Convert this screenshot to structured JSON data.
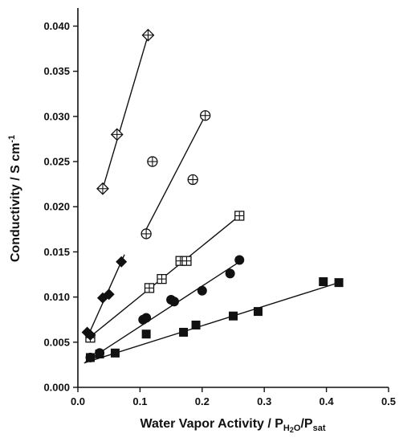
{
  "chart_data": {
    "type": "scatter",
    "title": "",
    "xlabel": {
      "text": "Water Vapor Activity / P",
      "sub1": "H",
      "sub2": "2",
      "sub3": "O",
      "mid": "/P",
      "sub4": "sat"
    },
    "ylabel": {
      "text": "Conductivity / S cm",
      "sup": "-1"
    },
    "xlim": [
      0.0,
      0.5
    ],
    "ylim": [
      0.0,
      0.042
    ],
    "xticks": [
      {
        "value": 0.0,
        "label": "0.0"
      },
      {
        "value": 0.1,
        "label": "0.1"
      },
      {
        "value": 0.2,
        "label": "0.2"
      },
      {
        "value": 0.3,
        "label": "0.3"
      },
      {
        "value": 0.4,
        "label": "0.4"
      },
      {
        "value": 0.5,
        "label": "0.5"
      }
    ],
    "yticks": [
      {
        "value": 0.0,
        "label": "0.000"
      },
      {
        "value": 0.005,
        "label": "0.005"
      },
      {
        "value": 0.01,
        "label": "0.010"
      },
      {
        "value": 0.015,
        "label": "0.015"
      },
      {
        "value": 0.02,
        "label": "0.020"
      },
      {
        "value": 0.025,
        "label": "0.025"
      },
      {
        "value": 0.03,
        "label": "0.030"
      },
      {
        "value": 0.035,
        "label": "0.035"
      },
      {
        "value": 0.04,
        "label": "0.040"
      }
    ],
    "grid": false,
    "legend": "none",
    "series": [
      {
        "marker": "filled-square",
        "points": [
          [
            0.02,
            0.0033
          ],
          [
            0.035,
            0.0037
          ],
          [
            0.06,
            0.0038
          ],
          [
            0.11,
            0.0059
          ],
          [
            0.17,
            0.0061
          ],
          [
            0.19,
            0.0069
          ],
          [
            0.25,
            0.0079
          ],
          [
            0.29,
            0.0084
          ],
          [
            0.395,
            0.0117
          ],
          [
            0.42,
            0.0116
          ]
        ],
        "fit": [
          [
            0.01,
            0.0027
          ],
          [
            0.42,
            0.0116
          ]
        ]
      },
      {
        "marker": "filled-circle",
        "points": [
          [
            0.02,
            0.0033
          ],
          [
            0.035,
            0.0038
          ],
          [
            0.105,
            0.0075
          ],
          [
            0.11,
            0.0077
          ],
          [
            0.15,
            0.0097
          ],
          [
            0.155,
            0.0095
          ],
          [
            0.2,
            0.0107
          ],
          [
            0.245,
            0.0126
          ],
          [
            0.26,
            0.0141
          ]
        ],
        "fit": [
          [
            0.012,
            0.0028
          ],
          [
            0.26,
            0.0139
          ]
        ]
      },
      {
        "marker": "square-plus",
        "points": [
          [
            0.02,
            0.0055
          ],
          [
            0.115,
            0.011
          ],
          [
            0.135,
            0.012
          ],
          [
            0.165,
            0.014
          ],
          [
            0.175,
            0.014
          ],
          [
            0.26,
            0.019
          ]
        ],
        "fit": [
          [
            0.018,
            0.0055
          ],
          [
            0.26,
            0.019
          ]
        ]
      },
      {
        "marker": "filled-diamond",
        "points": [
          [
            0.015,
            0.0061
          ],
          [
            0.02,
            0.0058
          ],
          [
            0.04,
            0.0099
          ],
          [
            0.05,
            0.0103
          ],
          [
            0.07,
            0.0139
          ]
        ],
        "fit": [
          [
            0.015,
            0.0055
          ],
          [
            0.075,
            0.0147
          ]
        ]
      },
      {
        "marker": "circle-plus",
        "points": [
          [
            0.11,
            0.017
          ],
          [
            0.12,
            0.025
          ],
          [
            0.185,
            0.023
          ],
          [
            0.205,
            0.0301
          ]
        ],
        "fit": [
          [
            0.11,
            0.0175
          ],
          [
            0.205,
            0.0301
          ]
        ]
      },
      {
        "marker": "diamond-plus",
        "points": [
          [
            0.04,
            0.022
          ],
          [
            0.063,
            0.028
          ],
          [
            0.113,
            0.039
          ]
        ],
        "fit": [
          [
            0.04,
            0.022
          ],
          [
            0.113,
            0.039
          ]
        ]
      }
    ]
  }
}
